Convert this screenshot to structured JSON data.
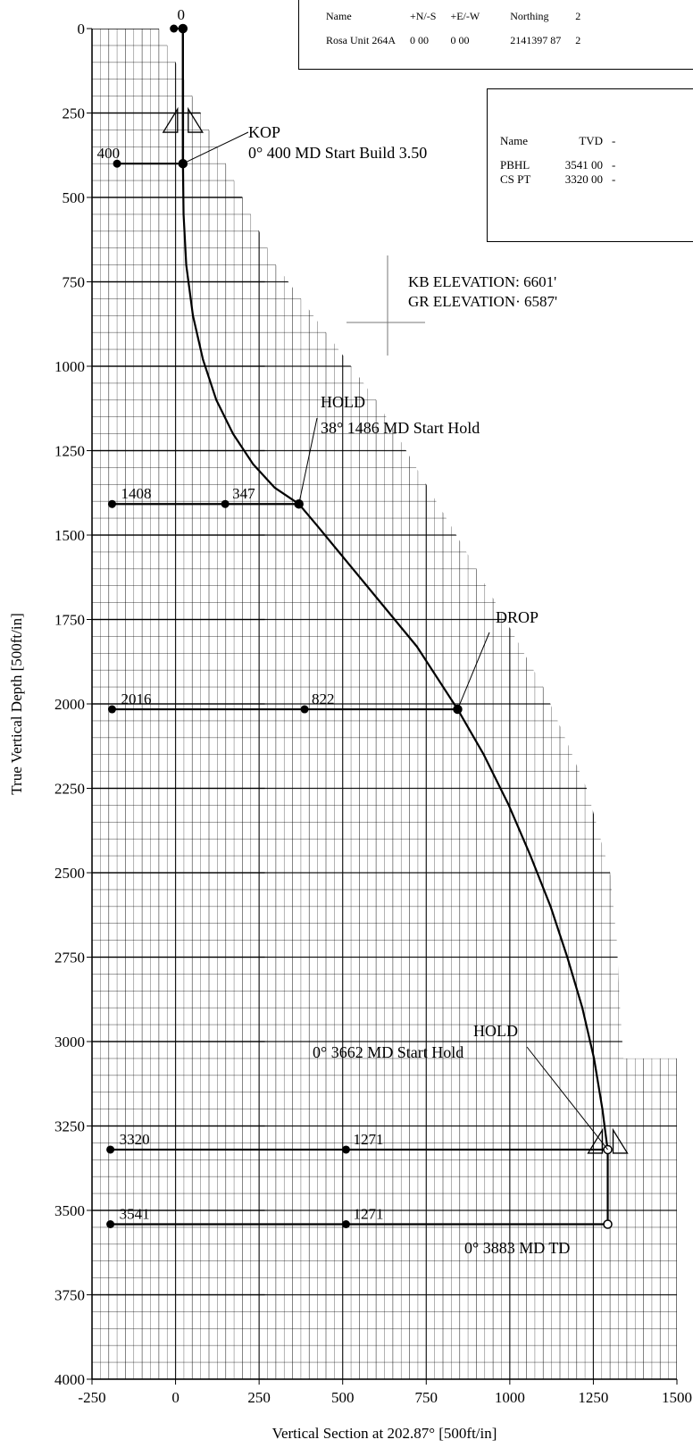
{
  "site_table": {
    "headers": [
      "Name",
      "+N/-S",
      "+E/-W",
      "Northing",
      "2"
    ],
    "rows": [
      [
        "Rosa Unit 264A",
        "0 00",
        "0 00",
        "2141397 87",
        "2"
      ]
    ]
  },
  "target_table": {
    "headers": [
      "Name",
      "TVD",
      "-"
    ],
    "rows": [
      [
        "PBHL",
        "3541 00",
        "-"
      ],
      [
        "CS PT",
        "3320 00",
        "-"
      ]
    ]
  },
  "elevations": {
    "kb": "KB ELEVATION: 6601'",
    "gr": "GR ELEVATION· 6587'"
  },
  "chart_data": {
    "type": "line",
    "xlabel": "Vertical Section at 202.87° [500ft/in]",
    "ylabel": "True Vertical Depth [500ft/in]",
    "xlim": [
      -250,
      1500
    ],
    "ylim": [
      4000,
      0
    ],
    "x_ticks": [
      "-250",
      "0",
      "250",
      "500",
      "750",
      "1000",
      "1250",
      "1500"
    ],
    "y_ticks": [
      "0",
      "250",
      "500",
      "750",
      "1000",
      "1250",
      "1500",
      "1750",
      "2000",
      "2250",
      "2500",
      "2750",
      "3000",
      "3250",
      "3500",
      "3750",
      "4000"
    ],
    "series": [
      {
        "x": [
          0,
          0,
          2,
          10,
          30,
          60,
          100,
          150,
          210,
          275,
          347,
          400,
          500,
          600,
          700,
          822,
          900,
          975,
          1040,
          1100,
          1150,
          1195,
          1230,
          1255,
          1268,
          1271,
          1271
        ],
        "y": [
          0,
          400,
          550,
          700,
          850,
          980,
          1100,
          1200,
          1290,
          1360,
          1408,
          1470,
          1590,
          1710,
          1830,
          2016,
          2150,
          2300,
          2450,
          2600,
          2750,
          2900,
          3050,
          3200,
          3300,
          3320,
          3541
        ]
      }
    ],
    "annotations": [
      {
        "label": "KOP",
        "text": "0° 400 MD Start Build 3.50",
        "x": 0,
        "y": 400
      },
      {
        "label": "HOLD",
        "text": "38° 1486 MD Start Hold",
        "x": 347,
        "y": 1408
      },
      {
        "label": "DROP",
        "text": "",
        "x": 822,
        "y": 2016
      },
      {
        "label": "HOLD",
        "text": "0° 3662 MD Start Hold",
        "x": 1271,
        "y": 3320
      },
      {
        "label": "",
        "text": "0° 3883 MD TD",
        "x": 1271,
        "y": 3541
      }
    ],
    "markers": [
      {
        "tvd": "0",
        "vs": "",
        "y": 0,
        "x_vs": 0
      },
      {
        "tvd": "400",
        "vs": "",
        "y": 400,
        "x_vs": 0
      },
      {
        "tvd": "1408",
        "vs": "347",
        "y": 1408,
        "x_vs": 347
      },
      {
        "tvd": "2016",
        "vs": "822",
        "y": 2016,
        "x_vs": 822
      },
      {
        "tvd": "3320",
        "vs": "1271",
        "y": 3320,
        "x_vs": 1271
      },
      {
        "tvd": "3541",
        "vs": "1271",
        "y": 3541,
        "x_vs": 1271
      }
    ]
  }
}
